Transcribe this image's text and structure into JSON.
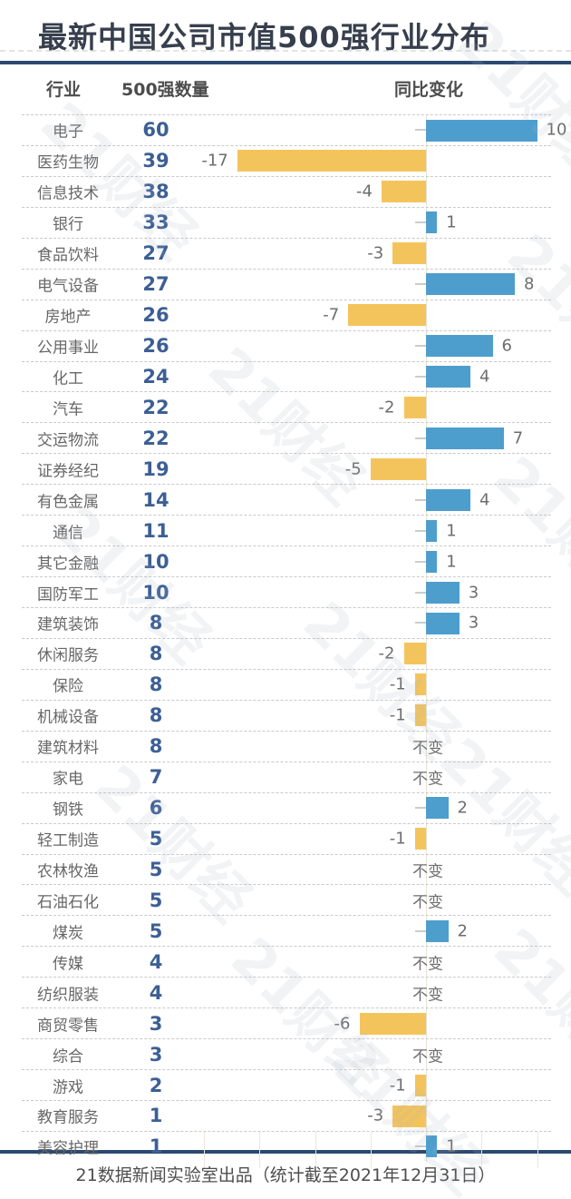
{
  "title": "最新中国公司市值500强行业分布",
  "header": {
    "industry": "行业",
    "count": "500强数量",
    "change": "同比变化"
  },
  "footer": "21数据新闻实验室出品（统计截至2021年12月31日）",
  "watermark": "21财经",
  "no_change_label": "不变",
  "colors": {
    "positive_bar": "#4E9ECD",
    "negative_bar": "#F4C45C",
    "rule": "#2B4971",
    "count_text": "#3C5F95",
    "title_text": "#373F4D"
  },
  "chart_data": {
    "type": "bar",
    "orientation": "horizontal-diverging",
    "title": "最新中国公司市值500强行业分布",
    "xlabel": "同比变化",
    "ylabel": "行业",
    "xlim": [
      -20,
      12
    ],
    "grid": false,
    "no_change_label": "不变",
    "positive_color": "#4E9ECD",
    "negative_color": "#F4C45C",
    "categories": [
      "电子",
      "医药生物",
      "信息技术",
      "银行",
      "食品饮料",
      "电气设备",
      "房地产",
      "公用事业",
      "化工",
      "汽车",
      "交运物流",
      "证券经纪",
      "有色金属",
      "通信",
      "其它金融",
      "国防军工",
      "建筑装饰",
      "休闲服务",
      "保险",
      "机械设备",
      "建筑材料",
      "家电",
      "钢铁",
      "轻工制造",
      "农林牧渔",
      "石油石化",
      "煤炭",
      "传媒",
      "纺织服装",
      "商贸零售",
      "综合",
      "游戏",
      "教育服务",
      "美容护理"
    ],
    "series": [
      {
        "name": "500强数量",
        "values": [
          60,
          39,
          38,
          33,
          27,
          27,
          26,
          26,
          24,
          22,
          22,
          19,
          14,
          11,
          10,
          10,
          8,
          8,
          8,
          8,
          8,
          7,
          6,
          5,
          5,
          5,
          5,
          4,
          4,
          3,
          3,
          2,
          1,
          1
        ]
      },
      {
        "name": "同比变化",
        "values": [
          10,
          -17,
          -4,
          1,
          -3,
          8,
          -7,
          6,
          4,
          -2,
          7,
          -5,
          4,
          1,
          1,
          3,
          3,
          -2,
          -1,
          -1,
          null,
          null,
          2,
          -1,
          null,
          null,
          2,
          null,
          null,
          -6,
          null,
          -1,
          -3,
          1
        ]
      }
    ]
  },
  "rows": [
    {
      "industry": "电子",
      "count": 60,
      "change": 10
    },
    {
      "industry": "医药生物",
      "count": 39,
      "change": -17
    },
    {
      "industry": "信息技术",
      "count": 38,
      "change": -4
    },
    {
      "industry": "银行",
      "count": 33,
      "change": 1
    },
    {
      "industry": "食品饮料",
      "count": 27,
      "change": -3
    },
    {
      "industry": "电气设备",
      "count": 27,
      "change": 8
    },
    {
      "industry": "房地产",
      "count": 26,
      "change": -7
    },
    {
      "industry": "公用事业",
      "count": 26,
      "change": 6
    },
    {
      "industry": "化工",
      "count": 24,
      "change": 4
    },
    {
      "industry": "汽车",
      "count": 22,
      "change": -2
    },
    {
      "industry": "交运物流",
      "count": 22,
      "change": 7
    },
    {
      "industry": "证券经纪",
      "count": 19,
      "change": -5
    },
    {
      "industry": "有色金属",
      "count": 14,
      "change": 4
    },
    {
      "industry": "通信",
      "count": 11,
      "change": 1
    },
    {
      "industry": "其它金融",
      "count": 10,
      "change": 1
    },
    {
      "industry": "国防军工",
      "count": 10,
      "change": 3
    },
    {
      "industry": "建筑装饰",
      "count": 8,
      "change": 3
    },
    {
      "industry": "休闲服务",
      "count": 8,
      "change": -2
    },
    {
      "industry": "保险",
      "count": 8,
      "change": -1
    },
    {
      "industry": "机械设备",
      "count": 8,
      "change": -1
    },
    {
      "industry": "建筑材料",
      "count": 8,
      "change": null
    },
    {
      "industry": "家电",
      "count": 7,
      "change": null
    },
    {
      "industry": "钢铁",
      "count": 6,
      "change": 2
    },
    {
      "industry": "轻工制造",
      "count": 5,
      "change": -1
    },
    {
      "industry": "农林牧渔",
      "count": 5,
      "change": null
    },
    {
      "industry": "石油石化",
      "count": 5,
      "change": null
    },
    {
      "industry": "煤炭",
      "count": 5,
      "change": 2
    },
    {
      "industry": "传媒",
      "count": 4,
      "change": null
    },
    {
      "industry": "纺织服装",
      "count": 4,
      "change": null
    },
    {
      "industry": "商贸零售",
      "count": 3,
      "change": -6
    },
    {
      "industry": "综合",
      "count": 3,
      "change": null
    },
    {
      "industry": "游戏",
      "count": 2,
      "change": -1
    },
    {
      "industry": "教育服务",
      "count": 1,
      "change": -3
    },
    {
      "industry": "美容护理",
      "count": 1,
      "change": 1
    }
  ]
}
